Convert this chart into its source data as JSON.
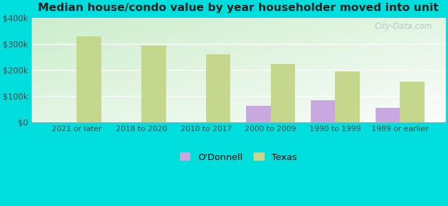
{
  "title": "Median house/condo value by year householder moved into unit",
  "categories": [
    "2021 or later",
    "2018 to 2020",
    "2010 to 2017",
    "2000 to 2009",
    "1990 to 1999",
    "1989 or earlier"
  ],
  "odonnell_values": [
    0,
    0,
    0,
    65000,
    85000,
    55000
  ],
  "texas_values": [
    330000,
    295000,
    260000,
    225000,
    195000,
    155000
  ],
  "odonnell_color": "#c9a8e0",
  "texas_color": "#c5d68d",
  "background_outer": "#00dddd",
  "ylim": [
    0,
    400000
  ],
  "yticks": [
    0,
    100000,
    200000,
    300000,
    400000
  ],
  "ytick_labels": [
    "$0",
    "$100k",
    "$200k",
    "$300k",
    "$400k"
  ],
  "bar_width": 0.38,
  "legend_odonnell": "O'Donnell",
  "legend_texas": "Texas",
  "watermark": "City-Data.com"
}
